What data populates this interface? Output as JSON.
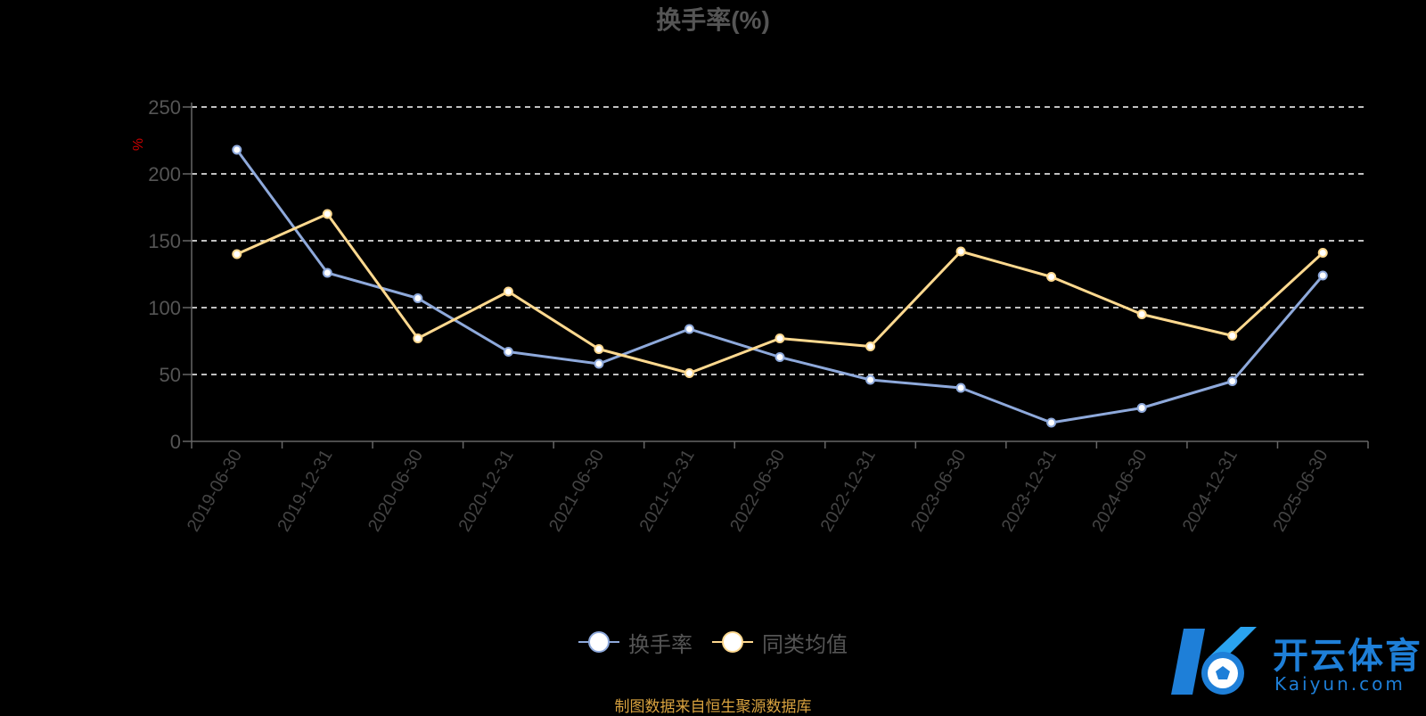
{
  "title": "换手率(%)",
  "ylabel": "%",
  "source": "制图数据来自恒生聚源数据库",
  "logo": {
    "main": "开云体育",
    "sub": "Kaiyun.com"
  },
  "colors": {
    "series1": "#8ea9db",
    "series2": "#ffd98f",
    "grid": "#ffffff",
    "axis": "#666666",
    "title": "#555555",
    "ylabel": "#cc0000",
    "source": "#d8a23f",
    "logo": "#1e7fd8"
  },
  "chart_data": {
    "type": "line",
    "title": "换手率(%)",
    "ylabel": "%",
    "ylim": [
      0,
      250
    ],
    "yticks": [
      0,
      50,
      100,
      150,
      200,
      250
    ],
    "grid": true,
    "legend": "bottom-center",
    "categories": [
      "2019-06-30",
      "2019-12-31",
      "2020-06-30",
      "2020-12-31",
      "2021-06-30",
      "2021-12-31",
      "2022-06-30",
      "2022-12-31",
      "2023-06-30",
      "2023-12-31",
      "2024-06-30",
      "2024-12-31",
      "2025-06-30"
    ],
    "series": [
      {
        "name": "换手率",
        "values": [
          218,
          126,
          107,
          67,
          58,
          84,
          63,
          46,
          40,
          14,
          25,
          45,
          124
        ]
      },
      {
        "name": "同类均值",
        "values": [
          140,
          170,
          77,
          112,
          69,
          51,
          77,
          71,
          142,
          123,
          95,
          79,
          141
        ]
      }
    ]
  }
}
